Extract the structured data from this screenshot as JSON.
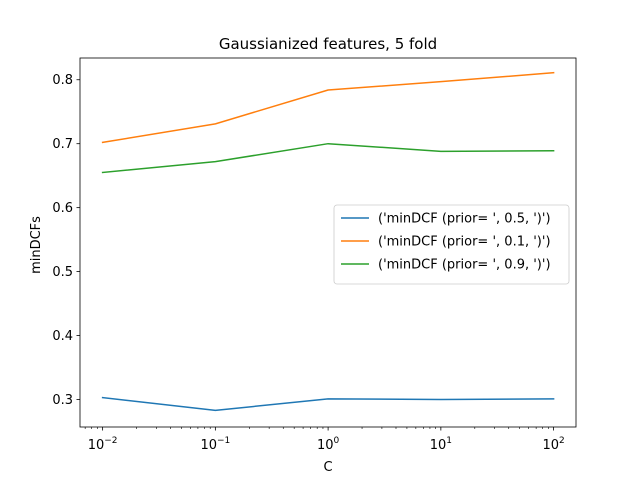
{
  "chart_data": {
    "type": "line",
    "title": "Gaussianized features, 5 fold",
    "xlabel": "C",
    "ylabel": "minDCFs",
    "xscale": "log",
    "x": [
      0.01,
      0.1,
      1,
      10,
      100
    ],
    "x_tick_labels": [
      {
        "base": "10",
        "exp": "−2"
      },
      {
        "base": "10",
        "exp": "−1"
      },
      {
        "base": "10",
        "exp": "0"
      },
      {
        "base": "10",
        "exp": "1"
      },
      {
        "base": "10",
        "exp": "2"
      }
    ],
    "y_ticks": [
      "0.3",
      "0.4",
      "0.5",
      "0.6",
      "0.7",
      "0.8"
    ],
    "xlim": [
      0.0063,
      158
    ],
    "ylim": [
      0.257,
      0.834
    ],
    "grid": false,
    "legend_position": "center-right",
    "series": [
      {
        "name": "('minDCF (prior= ', 0.5, ')')",
        "color": "#1f77b4",
        "values": [
          0.303,
          0.283,
          0.301,
          0.3,
          0.301
        ]
      },
      {
        "name": "('minDCF (prior= ', 0.1, ')')",
        "color": "#ff7f0e",
        "values": [
          0.702,
          0.731,
          0.784,
          0.797,
          0.811
        ]
      },
      {
        "name": "('minDCF (prior= ', 0.9, ')')",
        "color": "#2ca02c",
        "values": [
          0.655,
          0.672,
          0.7,
          0.688,
          0.689
        ]
      }
    ]
  }
}
